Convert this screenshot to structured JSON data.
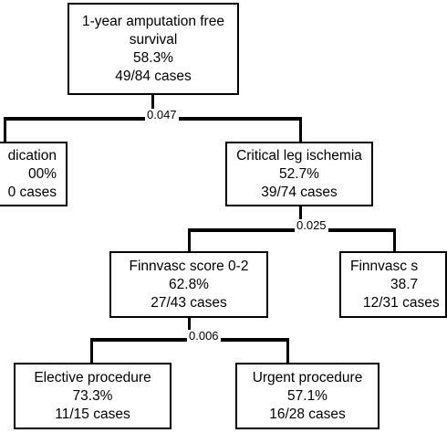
{
  "nodes": {
    "root": {
      "line1": "1-year amputation free",
      "line2": "survival",
      "pct": "58.3%",
      "cases": "49/84 cases"
    },
    "claudication": {
      "line1": "dication",
      "pct": "00%",
      "cases": "0 cases"
    },
    "cli": {
      "line1": "Critical leg ischemia",
      "pct": "52.7%",
      "cases": "39/74 cases"
    },
    "finn_low": {
      "line1": "Finnvasc score 0-2",
      "pct": "62.8%",
      "cases": "27/43 cases"
    },
    "finn_high": {
      "line1": "Finnvasc s",
      "pct": "38.7",
      "cases": "12/31 cases"
    },
    "elective": {
      "line1": "Elective procedure",
      "pct": "73.3%",
      "cases": "11/15 cases"
    },
    "urgent": {
      "line1": "Urgent procedure",
      "pct": "57.1%",
      "cases": "16/28 cases"
    }
  },
  "p_values": {
    "root_split": "0.047",
    "cli_split": "0.025",
    "finn_split": "0.006"
  }
}
